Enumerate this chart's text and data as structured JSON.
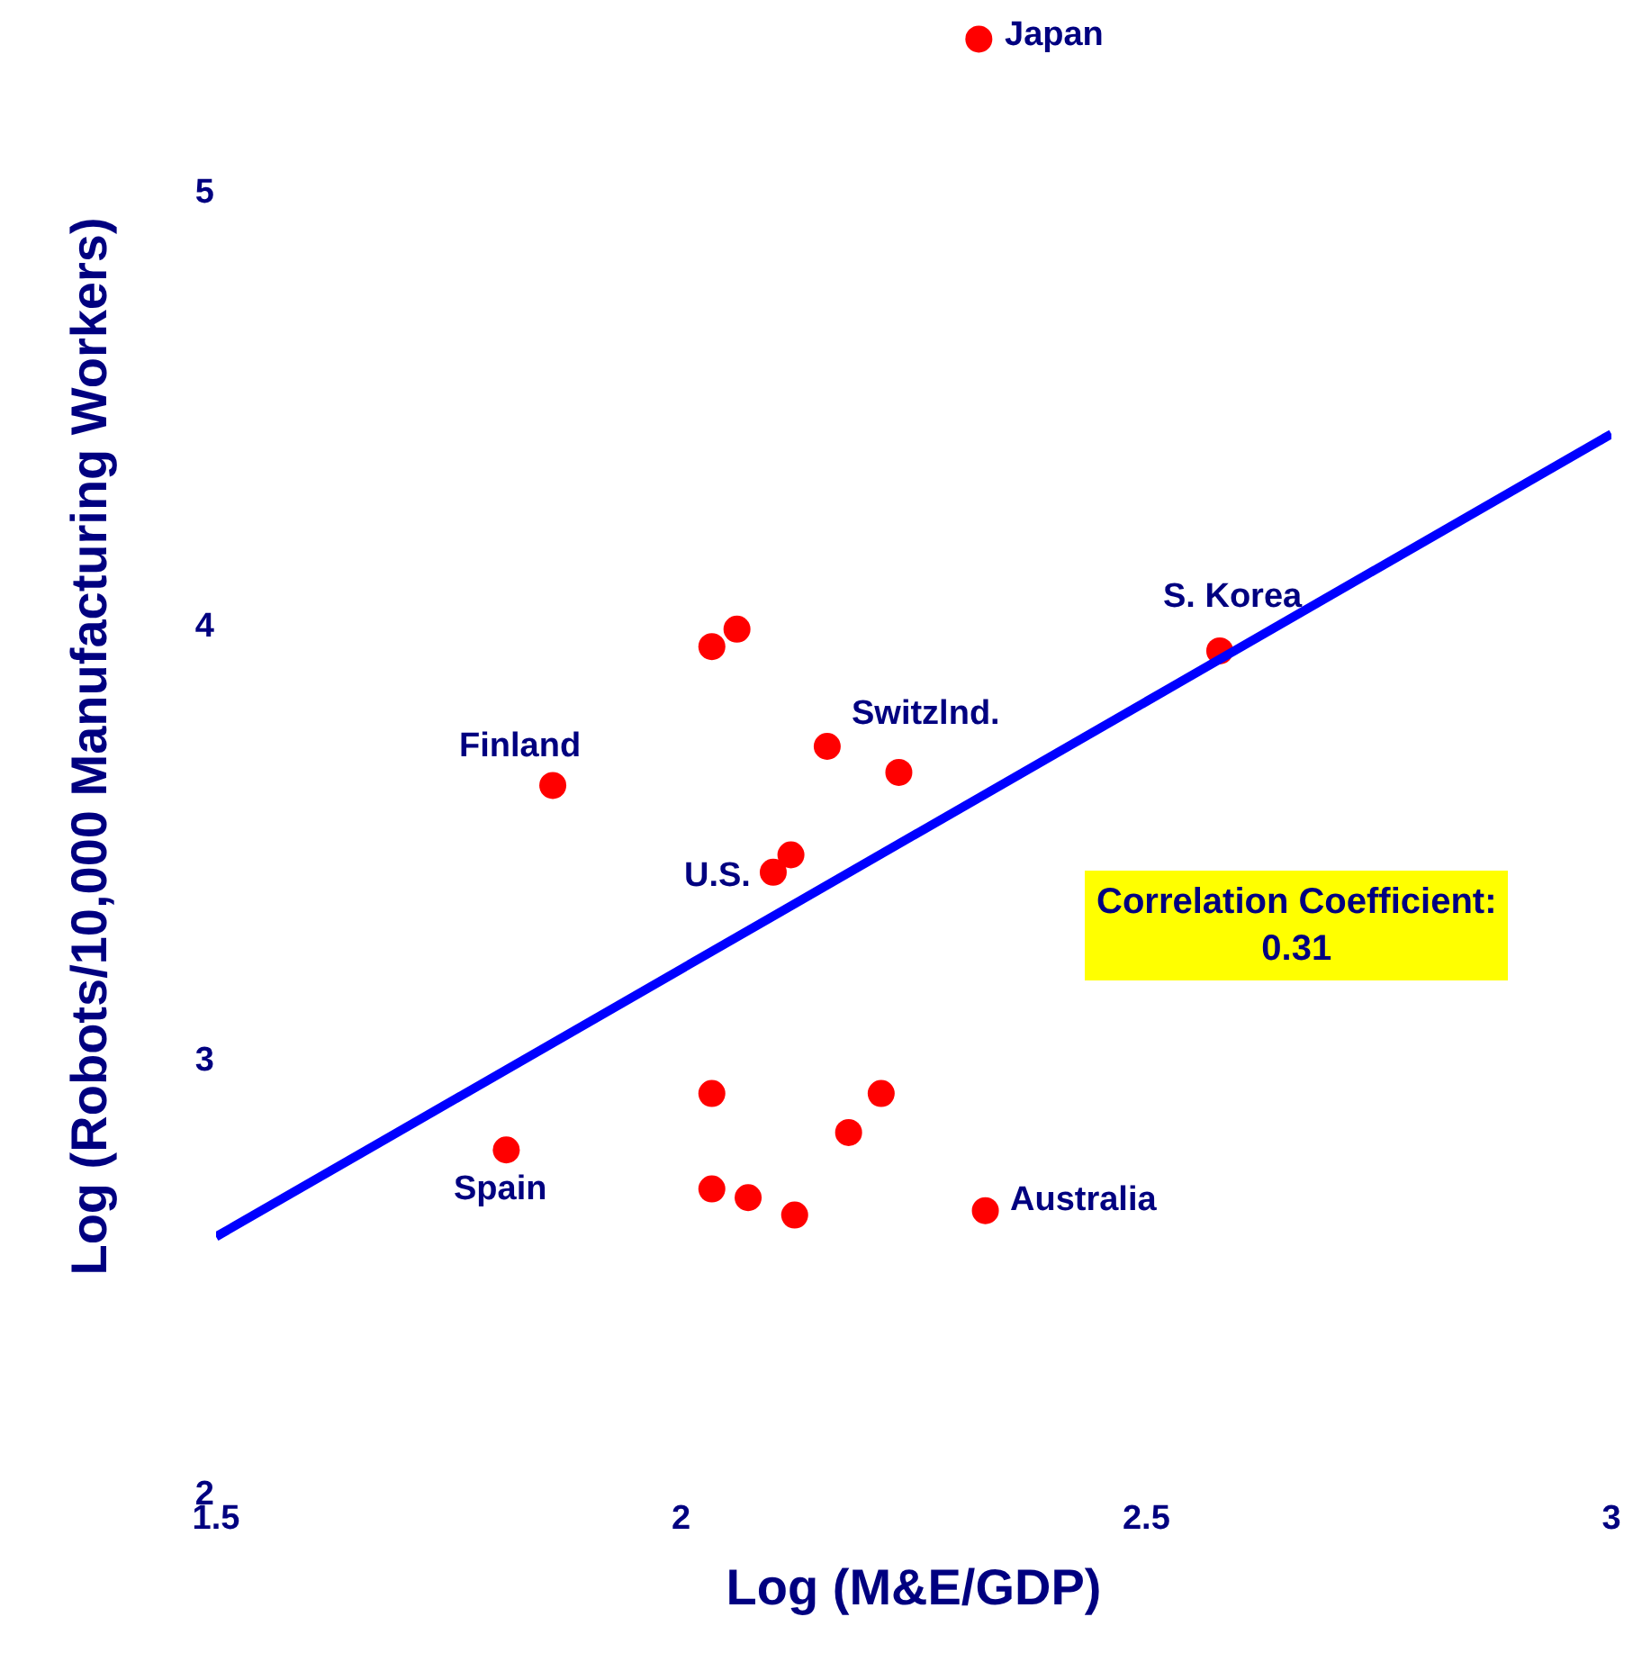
{
  "chart_data": {
    "type": "scatter",
    "xlabel": "Log (M&E/GDP)",
    "ylabel": "Log (Robots/10,000 Manufacturing Workers)",
    "xlim": [
      1.5,
      3
    ],
    "ylim": [
      2,
      5.44
    ],
    "xticks": [
      1.5,
      2,
      2.5,
      3
    ],
    "yticks": [
      2,
      3,
      4,
      5
    ],
    "series": [
      {
        "marker": "circle",
        "color": "#ff0000",
        "x": [
          2.32,
          2.033,
          2.06,
          2.579,
          1.862,
          2.157,
          2.234,
          2.118,
          2.099,
          2.033,
          2.215,
          2.18,
          1.812,
          2.033,
          2.072,
          2.122,
          2.327
        ],
        "values": [
          5.35,
          3.95,
          3.99,
          3.94,
          3.63,
          3.72,
          3.66,
          3.47,
          3.43,
          2.92,
          2.92,
          2.83,
          2.79,
          2.7,
          2.68,
          2.64,
          2.65
        ]
      },
      {
        "type": "line",
        "marker": "none",
        "color": "#0000ff",
        "x": [
          1.5,
          3
        ],
        "values": [
          2.59,
          4.44
        ]
      }
    ],
    "annotations": [
      {
        "text": "Japan",
        "x": 2.32,
        "y": 5.35
      },
      {
        "text": "S. Korea",
        "x": 2.579,
        "y": 3.94
      },
      {
        "text": "Switzlnd.",
        "x": 2.157,
        "y": 3.72
      },
      {
        "text": "Finland",
        "x": 1.862,
        "y": 3.63
      },
      {
        "text": "U.S.",
        "x": 2.099,
        "y": 3.43
      },
      {
        "text": "Spain",
        "x": 1.812,
        "y": 2.79
      },
      {
        "text": "Australia",
        "x": 2.327,
        "y": 2.65
      },
      "Correlation Coefficient:\n0.31"
    ]
  }
}
